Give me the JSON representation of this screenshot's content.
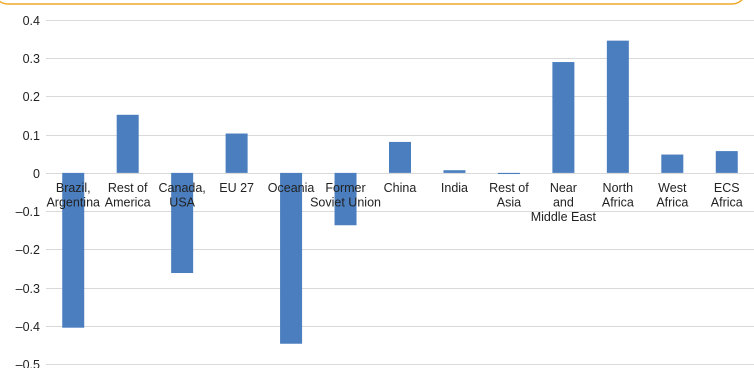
{
  "chart_data": {
    "type": "bar",
    "title": "",
    "xlabel": "",
    "ylabel": "",
    "ylim": [
      -0.5,
      0.4
    ],
    "yticks": [
      0.4,
      0.3,
      0.2,
      0.1,
      0,
      -0.1,
      -0.2,
      -0.3,
      -0.4,
      -0.5
    ],
    "ytick_labels": [
      "0.4",
      "0.3",
      "0.2",
      "0.1",
      "0",
      "–0.1",
      "–0.2",
      "–0.3",
      "–0.4",
      "–0.5"
    ],
    "categories": [
      [
        "Brazil,",
        "Argentina"
      ],
      [
        "Rest of",
        "America"
      ],
      [
        "Canada,",
        "USA"
      ],
      [
        "EU 27"
      ],
      [
        "Oceania"
      ],
      [
        "Former",
        "Soviet Union"
      ],
      [
        "China"
      ],
      [
        "India"
      ],
      [
        "Rest of",
        "Asia"
      ],
      [
        "Near",
        "and",
        "Middle East"
      ],
      [
        "North",
        "Africa"
      ],
      [
        "West",
        "Africa"
      ],
      [
        "ECS",
        "Africa"
      ]
    ],
    "values": [
      -0.405,
      0.152,
      -0.262,
      0.103,
      -0.447,
      -0.137,
      0.081,
      0.007,
      -0.003,
      0.29,
      0.346,
      0.048,
      0.057
    ],
    "grid": true,
    "legend": "none",
    "bar_color": "#4a7ebf",
    "frame_color": "#f0a928"
  }
}
